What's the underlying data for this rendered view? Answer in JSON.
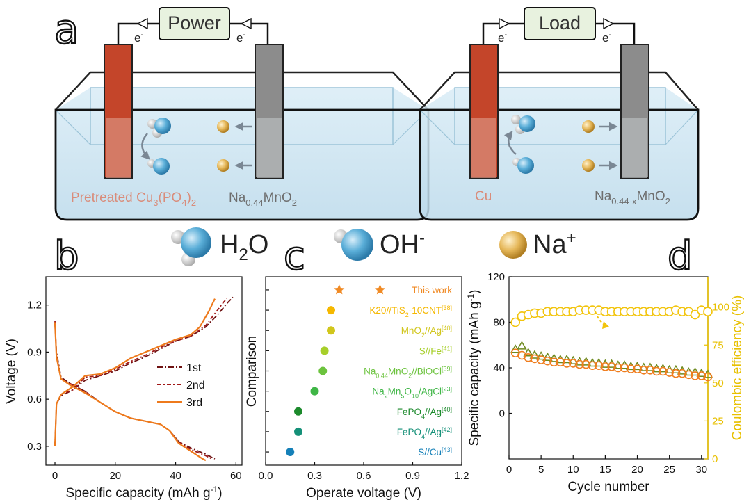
{
  "figure": {
    "panel_labels": [
      "a",
      "b",
      "c",
      "d"
    ],
    "panel_a": {
      "left_cell": {
        "source_label": "Power",
        "electron_left": "e",
        "electron_right": "e",
        "electron_sup": "-",
        "electrode_left": {
          "main": "Pretreated Cu",
          "sub1": "3",
          "mid": "(PO",
          "sub2": "4",
          "end": ")",
          "sub3": "2"
        },
        "electrode_right": {
          "main": "Na",
          "sub": "0.44",
          "end": "MnO",
          "sub2": "2"
        },
        "colors": {
          "copper": "#c4452a",
          "copper_faded": "#d98c7a",
          "mno2": "#8c8c8c",
          "water": "#cfe6f2",
          "frame": "#1a1a1a"
        }
      },
      "right_cell": {
        "source_label": "Load",
        "electron_left": "e",
        "electron_right": "e",
        "electron_sup": "-",
        "electrode_left": {
          "main": "Cu"
        },
        "electrode_right": {
          "main": "Na",
          "sub": "0.44-x",
          "end": "MnO",
          "sub2": "2"
        }
      },
      "legend": [
        {
          "icon": "water-molecule-icon",
          "main": "H",
          "sub": "2",
          "end": "O"
        },
        {
          "icon": "hydroxide-icon",
          "main": "OH",
          "sup": "-"
        },
        {
          "icon": "sodium-ion-icon",
          "main": "Na",
          "sup": "+"
        }
      ]
    }
  },
  "chart_data": [
    {
      "type": "line",
      "panel": "b",
      "xlabel": "Specific capacity (mAh g",
      "xlabel_sup": "-1",
      "xlabel_end": ")",
      "ylabel": "Voltage (V)",
      "xlim": [
        -3,
        62
      ],
      "ylim": [
        0.18,
        1.38
      ],
      "x_ticks": [
        "0",
        "20",
        "40",
        "60"
      ],
      "y_ticks": [
        "0.3",
        "0.6",
        "0.9",
        "1.2"
      ],
      "legend_position": "right",
      "series": [
        {
          "name": "1st",
          "color": "#6e1212",
          "dash": "8,3,2,3",
          "charge": [
            [
              0,
              0.3
            ],
            [
              0.5,
              0.57
            ],
            [
              2,
              0.62
            ],
            [
              6,
              0.66
            ],
            [
              10,
              0.72
            ],
            [
              15,
              0.75
            ],
            [
              20,
              0.78
            ],
            [
              25,
              0.83
            ],
            [
              30,
              0.87
            ],
            [
              35,
              0.92
            ],
            [
              40,
              0.97
            ],
            [
              45,
              1.0
            ],
            [
              50,
              1.06
            ],
            [
              54,
              1.14
            ],
            [
              57,
              1.21
            ],
            [
              59,
              1.25
            ]
          ],
          "discharge": [
            [
              0,
              1.08
            ],
            [
              0.5,
              0.9
            ],
            [
              2,
              0.74
            ],
            [
              5,
              0.7
            ],
            [
              10,
              0.65
            ],
            [
              15,
              0.58
            ],
            [
              20,
              0.52
            ],
            [
              25,
              0.48
            ],
            [
              30,
              0.46
            ],
            [
              35,
              0.44
            ],
            [
              38,
              0.4
            ],
            [
              41,
              0.33
            ],
            [
              45,
              0.29
            ],
            [
              50,
              0.25
            ],
            [
              53,
              0.22
            ]
          ]
        },
        {
          "name": "2nd",
          "color": "#a01818",
          "dash": "6,3,2,3",
          "charge": [
            [
              0,
              0.3
            ],
            [
              0.5,
              0.57
            ],
            [
              2,
              0.63
            ],
            [
              6,
              0.66
            ],
            [
              10,
              0.74
            ],
            [
              15,
              0.75
            ],
            [
              20,
              0.79
            ],
            [
              25,
              0.84
            ],
            [
              30,
              0.88
            ],
            [
              35,
              0.93
            ],
            [
              40,
              0.97
            ],
            [
              45,
              1.0
            ],
            [
              50,
              1.07
            ],
            [
              54,
              1.17
            ],
            [
              56,
              1.22
            ],
            [
              57,
              1.24
            ]
          ],
          "discharge": [
            [
              0,
              1.1
            ],
            [
              0.5,
              0.88
            ],
            [
              2,
              0.73
            ],
            [
              5,
              0.7
            ],
            [
              10,
              0.65
            ],
            [
              15,
              0.58
            ],
            [
              20,
              0.52
            ],
            [
              25,
              0.48
            ],
            [
              30,
              0.46
            ],
            [
              35,
              0.44
            ],
            [
              38,
              0.4
            ],
            [
              41,
              0.33
            ],
            [
              45,
              0.28
            ],
            [
              50,
              0.24
            ],
            [
              52,
              0.22
            ]
          ]
        },
        {
          "name": "3rd",
          "color": "#ee7a1c",
          "dash": "",
          "charge": [
            [
              0,
              0.3
            ],
            [
              0.5,
              0.57
            ],
            [
              2,
              0.63
            ],
            [
              6,
              0.68
            ],
            [
              10,
              0.75
            ],
            [
              15,
              0.76
            ],
            [
              20,
              0.8
            ],
            [
              25,
              0.86
            ],
            [
              30,
              0.9
            ],
            [
              35,
              0.94
            ],
            [
              40,
              0.98
            ],
            [
              45,
              1.01
            ],
            [
              48,
              1.06
            ],
            [
              51,
              1.16
            ],
            [
              53,
              1.24
            ]
          ],
          "discharge": [
            [
              0,
              1.09
            ],
            [
              0.5,
              0.87
            ],
            [
              2,
              0.73
            ],
            [
              5,
              0.69
            ],
            [
              10,
              0.64
            ],
            [
              15,
              0.58
            ],
            [
              20,
              0.52
            ],
            [
              25,
              0.48
            ],
            [
              30,
              0.46
            ],
            [
              35,
              0.44
            ],
            [
              38,
              0.4
            ],
            [
              41,
              0.32
            ],
            [
              45,
              0.27
            ],
            [
              49,
              0.22
            ],
            [
              50,
              0.21
            ]
          ]
        }
      ]
    },
    {
      "type": "scatter",
      "panel": "c",
      "xlabel": "Operate voltage (V)",
      "ylabel": "Comparison",
      "xlim": [
        0.0,
        1.2
      ],
      "x_ticks": [
        "0.0",
        "0.3",
        "0.6",
        "0.9",
        "1.2"
      ],
      "points": [
        {
          "x": 0.7,
          "marker": "star",
          "color": "#f08a24",
          "label": [
            [
              "This work",
              ""
            ]
          ]
        },
        {
          "x": 0.4,
          "marker": "circle",
          "color": "#f5b800",
          "label": [
            [
              "K20//TiS",
              ""
            ],
            [
              "2",
              "sub"
            ],
            [
              "-10CNT",
              ""
            ],
            [
              "[38]",
              "sup"
            ]
          ]
        },
        {
          "x": 0.4,
          "marker": "circle",
          "color": "#d1c61c",
          "label": [
            [
              "MnO",
              ""
            ],
            [
              "2",
              "sub"
            ],
            [
              "//Ag",
              ""
            ],
            [
              "[40]",
              "sup"
            ]
          ]
        },
        {
          "x": 0.36,
          "marker": "circle",
          "color": "#a7cf2a",
          "label": [
            [
              "S//Fe",
              ""
            ],
            [
              "[41]",
              "sup"
            ]
          ]
        },
        {
          "x": 0.35,
          "marker": "circle",
          "color": "#6cc33e",
          "label": [
            [
              "Na",
              ""
            ],
            [
              "0.44",
              "sub"
            ],
            [
              "MnO",
              ""
            ],
            [
              "2",
              "sub"
            ],
            [
              "//BiOCl",
              ""
            ],
            [
              "[39]",
              "sup"
            ]
          ]
        },
        {
          "x": 0.3,
          "marker": "circle",
          "color": "#3fb646",
          "label": [
            [
              "Na",
              ""
            ],
            [
              "2",
              "sub"
            ],
            [
              "Mn",
              ""
            ],
            [
              "5",
              "sub"
            ],
            [
              "O",
              ""
            ],
            [
              "10",
              "sub"
            ],
            [
              "/AgCl",
              ""
            ],
            [
              "[23]",
              "sup"
            ]
          ]
        },
        {
          "x": 0.2,
          "marker": "circle",
          "color": "#1c8a2c",
          "label": [
            [
              "FePO",
              ""
            ],
            [
              "4",
              "sub"
            ],
            [
              "//Ag",
              ""
            ],
            [
              "[40]",
              "sup"
            ]
          ]
        },
        {
          "x": 0.2,
          "marker": "circle",
          "color": "#159078",
          "label": [
            [
              "FePO",
              ""
            ],
            [
              "4",
              "sub"
            ],
            [
              "//Ag",
              ""
            ],
            [
              "[42]",
              "sup"
            ]
          ]
        },
        {
          "x": 0.15,
          "marker": "circle",
          "color": "#1580b8",
          "label": [
            [
              "S//Cu",
              ""
            ],
            [
              "[43]",
              "sup"
            ]
          ]
        }
      ],
      "extra_star_x": 0.45
    },
    {
      "type": "scatter",
      "panel": "d",
      "xlabel": "Cycle number",
      "ylabel": "Specific capacity (mAh g",
      "ylabel_sup": "-1",
      "ylabel_end": ")",
      "y2label": "Coulombic efficiency (%)",
      "xlim": [
        0,
        31
      ],
      "ylim": [
        -40,
        120
      ],
      "y2lim": [
        0,
        120
      ],
      "x_ticks": [
        "0",
        "5",
        "10",
        "15",
        "20",
        "25",
        "30"
      ],
      "y_ticks": [
        "0",
        "40",
        "80",
        "120"
      ],
      "y2_ticks": [
        "0",
        "25",
        "50",
        "75",
        "100"
      ],
      "colors": {
        "efficiency": "#f2c40c",
        "capacity": "#ef7d1e",
        "capacity_charge": "#6e8a1e",
        "right_axis": "#e8c000"
      },
      "efficiency": [
        90,
        94,
        95,
        96,
        96,
        97,
        97,
        97,
        97,
        97,
        98,
        98,
        98,
        98,
        97,
        97,
        97,
        97,
        97,
        97,
        97,
        97,
        97,
        97,
        97,
        98,
        97,
        97,
        95,
        98,
        97
      ],
      "capacity_discharge": [
        53,
        51,
        49,
        48,
        47,
        46,
        45,
        45,
        44,
        44,
        43,
        43,
        42,
        42,
        41,
        41,
        40,
        40,
        39,
        39,
        38,
        38,
        37,
        37,
        36,
        35,
        35,
        34,
        33,
        33,
        32
      ],
      "capacity_charge": [
        56,
        59,
        53,
        51,
        50,
        49,
        48,
        47,
        47,
        46,
        45,
        45,
        44,
        44,
        43,
        43,
        42,
        42,
        41,
        41,
        40,
        40,
        39,
        39,
        38,
        38,
        37,
        36,
        36,
        35,
        34
      ]
    }
  ]
}
